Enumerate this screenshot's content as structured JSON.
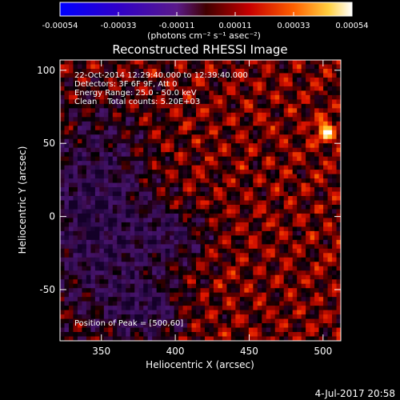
{
  "colorbar": {
    "tick_labels": [
      "-0.00054",
      "-0.00033",
      "-0.00011",
      "0.00011",
      "0.00033",
      "0.00054"
    ],
    "unit_label": "(photons cm⁻² s⁻¹ asec⁻²)",
    "range": [
      -0.00054,
      0.00054
    ]
  },
  "chart_data": {
    "type": "heatmap",
    "title": "Reconstructed RHESSI Image",
    "xlabel": "Heliocentric X (arcsec)",
    "ylabel": "Heliocentric Y (arcsec)",
    "xlim": [
      322,
      512
    ],
    "ylim": [
      -85,
      107
    ],
    "x_ticks": [
      350,
      400,
      450,
      500
    ],
    "y_ticks": [
      -50,
      0,
      50,
      100
    ],
    "peak": [
      500,
      60
    ],
    "annotations": [
      "22-Oct-2014 12:29:40.000 to 12:39:40.000",
      "Detectors: 3F 6F 9F, Att 0",
      "Energy Range: 25.0 - 50.0 keV",
      "Clean    Total counts: 5.20E+03",
      "Position of Peak = [500,60]"
    ]
  },
  "timestamp": "4-Jul-2017 20:58",
  "colors": {
    "background": "#000000",
    "foreground": "#ffffff"
  }
}
